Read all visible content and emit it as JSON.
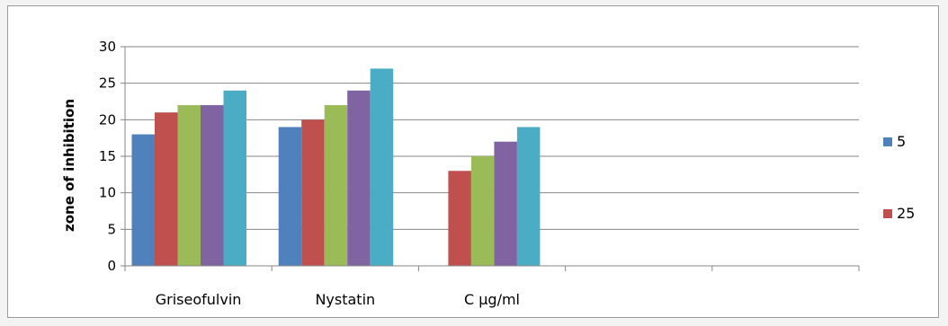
{
  "chart_data": {
    "type": "bar",
    "title": "",
    "ylabel": "zone of inhibition",
    "xlabel": "",
    "categories": [
      "Griseofulvin",
      "Nystatin",
      "C µg/ml",
      "",
      ""
    ],
    "ylim": [
      0,
      30
    ],
    "yticks": [
      0,
      5,
      10,
      15,
      20,
      25,
      30
    ],
    "grid": true,
    "legend_position": "right",
    "series": [
      {
        "name": "5",
        "color": "#4f81bd",
        "values": [
          18,
          19,
          null,
          null,
          null
        ]
      },
      {
        "name": "25",
        "color": "#c0504d",
        "values": [
          21,
          20,
          13,
          null,
          null
        ]
      },
      {
        "color": "#9bbb59",
        "values": [
          22,
          22,
          15,
          null,
          null
        ]
      },
      {
        "color": "#8064a2",
        "values": [
          22,
          24,
          17,
          null,
          null
        ]
      },
      {
        "color": "#4bacc6",
        "values": [
          24,
          27,
          19,
          null,
          null
        ]
      }
    ]
  }
}
